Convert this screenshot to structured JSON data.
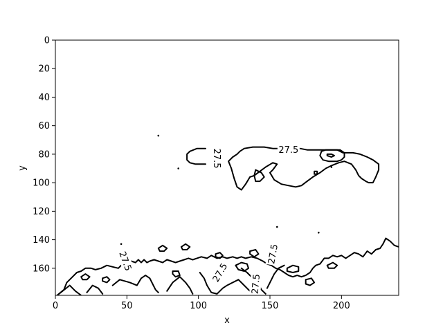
{
  "chart_data": {
    "type": "contour",
    "title": "",
    "xlabel": "x",
    "ylabel": "y",
    "xlim": [
      0,
      240
    ],
    "ylim": [
      179,
      0
    ],
    "y_inverted": true,
    "xticks": [
      "0",
      "50",
      "100",
      "150",
      "200"
    ],
    "yticks": [
      "0",
      "20",
      "40",
      "60",
      "80",
      "100",
      "120",
      "140",
      "160"
    ],
    "grid": false,
    "legend": "none",
    "line_color": "#000000",
    "contour_level": 27.5,
    "contour_labels": [
      {
        "text": "27.5",
        "x": 163,
        "y": 77,
        "rotation": 0
      },
      {
        "text": "27.5",
        "x": 113,
        "y": 83,
        "rotation": 90
      },
      {
        "text": "27.5",
        "x": 49,
        "y": 155,
        "rotation": 70
      },
      {
        "text": "27.5",
        "x": 115,
        "y": 163,
        "rotation": -60
      },
      {
        "text": "27.5",
        "x": 140,
        "y": 171,
        "rotation": -85
      },
      {
        "text": "27.5",
        "x": 152,
        "y": 150,
        "rotation": -80
      }
    ],
    "contours": [
      [
        [
          105,
          76
        ],
        [
          99,
          76
        ],
        [
          94,
          78
        ],
        [
          92,
          80
        ],
        [
          92,
          84
        ],
        [
          94,
          86
        ],
        [
          98,
          87
        ],
        [
          105,
          87
        ]
      ],
      [
        [
          121,
          85
        ],
        [
          123,
          90
        ],
        [
          125,
          97
        ],
        [
          127,
          103
        ],
        [
          130,
          105
        ],
        [
          133,
          101
        ],
        [
          136,
          96
        ],
        [
          139,
          95
        ],
        [
          143,
          92
        ],
        [
          147,
          89
        ],
        [
          152,
          86
        ],
        [
          155,
          87
        ],
        [
          152,
          91
        ],
        [
          150,
          93
        ],
        [
          153,
          98
        ],
        [
          158,
          101
        ],
        [
          163,
          102
        ],
        [
          168,
          103
        ],
        [
          172,
          102
        ],
        [
          176,
          99
        ],
        [
          180,
          96
        ],
        [
          185,
          93
        ],
        [
          189,
          90
        ],
        [
          193,
          88
        ],
        [
          198,
          86
        ],
        [
          202,
          85
        ],
        [
          207,
          87
        ],
        [
          210,
          91
        ],
        [
          212,
          95
        ],
        [
          214,
          97
        ],
        [
          217,
          99
        ],
        [
          219,
          100
        ],
        [
          222,
          100
        ],
        [
          224,
          96
        ],
        [
          226,
          91
        ],
        [
          226,
          87
        ],
        [
          222,
          84
        ],
        [
          218,
          82
        ],
        [
          213,
          80
        ],
        [
          208,
          79
        ],
        [
          201,
          79
        ],
        [
          197,
          77
        ],
        [
          191,
          77
        ],
        [
          186,
          77
        ],
        [
          181,
          77
        ],
        [
          176,
          77
        ],
        [
          171,
          76
        ],
        [
          167,
          76
        ],
        [
          160,
          76
        ],
        [
          152,
          76
        ],
        [
          146,
          75
        ],
        [
          138,
          75
        ],
        [
          132,
          76
        ],
        [
          129,
          78
        ],
        [
          127,
          80
        ],
        [
          124,
          82
        ],
        [
          121,
          85
        ]
      ],
      [
        [
          140,
          91
        ],
        [
          139,
          95
        ],
        [
          140,
          99
        ],
        [
          143,
          99
        ],
        [
          146,
          96
        ],
        [
          144,
          93
        ],
        [
          140,
          91
        ]
      ],
      [
        [
          186,
          78
        ],
        [
          189,
          77
        ],
        [
          199,
          77
        ],
        [
          202,
          79
        ],
        [
          202,
          82
        ],
        [
          200,
          84
        ],
        [
          197,
          85
        ],
        [
          191,
          85
        ],
        [
          187,
          84
        ],
        [
          185,
          81
        ],
        [
          186,
          78
        ]
      ],
      [
        [
          190,
          80
        ],
        [
          193,
          80
        ],
        [
          195,
          81
        ],
        [
          193,
          82
        ],
        [
          190,
          81
        ],
        [
          190,
          80
        ]
      ],
      [
        [
          181,
          92
        ],
        [
          183,
          92
        ],
        [
          183,
          94
        ],
        [
          181,
          94
        ],
        [
          181,
          92
        ]
      ],
      [
        [
          0,
          180
        ],
        [
          6,
          175
        ],
        [
          8,
          170
        ],
        [
          12,
          166
        ],
        [
          15,
          163
        ],
        [
          18,
          162
        ],
        [
          21,
          160
        ],
        [
          25,
          160
        ],
        [
          28,
          161
        ],
        [
          32,
          160
        ],
        [
          36,
          158
        ],
        [
          40,
          159
        ],
        [
          44,
          160
        ],
        [
          47,
          157
        ],
        [
          50,
          156
        ],
        [
          53,
          155
        ],
        [
          56,
          156
        ],
        [
          58,
          154
        ],
        [
          60,
          156
        ],
        [
          62,
          154
        ],
        [
          64,
          156
        ],
        [
          66,
          155
        ],
        [
          69,
          154
        ],
        [
          72,
          155
        ],
        [
          75,
          156
        ],
        [
          78,
          154
        ],
        [
          81,
          155
        ],
        [
          84,
          156
        ],
        [
          87,
          155
        ],
        [
          90,
          154
        ],
        [
          93,
          153
        ],
        [
          96,
          154
        ],
        [
          99,
          153
        ],
        [
          102,
          152
        ],
        [
          106,
          153
        ],
        [
          109,
          151
        ],
        [
          113,
          153
        ],
        [
          117,
          152
        ],
        [
          120,
          153
        ],
        [
          124,
          152
        ],
        [
          127,
          153
        ],
        [
          130,
          152
        ],
        [
          133,
          153
        ],
        [
          137,
          152
        ],
        [
          141,
          153
        ],
        [
          145,
          155
        ],
        [
          148,
          157
        ],
        [
          151,
          158
        ],
        [
          154,
          160
        ],
        [
          157,
          161
        ],
        [
          160,
          163
        ],
        [
          163,
          165
        ],
        [
          166,
          166
        ],
        [
          169,
          165
        ],
        [
          172,
          166
        ],
        [
          175,
          165
        ],
        [
          178,
          163
        ],
        [
          180,
          160
        ],
        [
          182,
          158
        ],
        [
          185,
          157
        ],
        [
          188,
          153
        ],
        [
          191,
          153
        ],
        [
          194,
          151
        ],
        [
          197,
          152
        ],
        [
          200,
          151
        ],
        [
          203,
          153
        ],
        [
          206,
          151
        ],
        [
          209,
          149
        ],
        [
          212,
          150
        ],
        [
          215,
          152
        ],
        [
          218,
          148
        ],
        [
          221,
          150
        ],
        [
          224,
          147
        ],
        [
          227,
          146
        ],
        [
          229,
          143
        ],
        [
          231,
          139
        ],
        [
          234,
          141
        ],
        [
          237,
          144
        ],
        [
          240,
          145
        ]
      ],
      [
        [
          0,
          180
        ],
        [
          10,
          172
        ],
        [
          14,
          176
        ],
        [
          18,
          179
        ]
      ],
      [
        [
          22,
          177
        ],
        [
          26,
          172
        ],
        [
          30,
          174
        ],
        [
          33,
          178
        ]
      ],
      [
        [
          40,
          172
        ],
        [
          45,
          168
        ],
        [
          52,
          170
        ],
        [
          57,
          172
        ],
        [
          60,
          167
        ],
        [
          63,
          165
        ],
        [
          66,
          167
        ],
        [
          68,
          171
        ],
        [
          70,
          175
        ],
        [
          72,
          177
        ]
      ],
      [
        [
          78,
          176
        ],
        [
          82,
          170
        ],
        [
          87,
          166
        ],
        [
          91,
          170
        ],
        [
          94,
          174
        ],
        [
          96,
          178
        ]
      ],
      [
        [
          101,
          163
        ],
        [
          104,
          167
        ],
        [
          106,
          172
        ],
        [
          109,
          177
        ],
        [
          113,
          178
        ],
        [
          117,
          174
        ],
        [
          120,
          172
        ],
        [
          124,
          170
        ],
        [
          128,
          168
        ],
        [
          131,
          171
        ],
        [
          135,
          175
        ],
        [
          138,
          178
        ]
      ],
      [
        [
          130,
          160
        ],
        [
          134,
          163
        ],
        [
          138,
          167
        ],
        [
          142,
          171
        ],
        [
          144,
          175
        ],
        [
          147,
          178
        ]
      ],
      [
        [
          148,
          174
        ],
        [
          151,
          168
        ],
        [
          153,
          164
        ],
        [
          156,
          160
        ],
        [
          160,
          158
        ]
      ],
      [
        [
          126,
          158
        ],
        [
          130,
          156
        ],
        [
          134,
          157
        ],
        [
          135,
          160
        ],
        [
          132,
          162
        ],
        [
          128,
          161
        ],
        [
          126,
          158
        ]
      ],
      [
        [
          136,
          148
        ],
        [
          140,
          147
        ],
        [
          142,
          150
        ],
        [
          139,
          152
        ],
        [
          136,
          150
        ],
        [
          136,
          148
        ]
      ],
      [
        [
          162,
          160
        ],
        [
          166,
          158
        ],
        [
          170,
          159
        ],
        [
          170,
          162
        ],
        [
          166,
          163
        ],
        [
          162,
          162
        ],
        [
          162,
          160
        ]
      ],
      [
        [
          175,
          168
        ],
        [
          179,
          167
        ],
        [
          181,
          170
        ],
        [
          178,
          172
        ],
        [
          175,
          171
        ],
        [
          175,
          168
        ]
      ],
      [
        [
          82,
          162
        ],
        [
          86,
          162
        ],
        [
          87,
          165
        ],
        [
          84,
          166
        ],
        [
          82,
          164
        ],
        [
          82,
          162
        ]
      ],
      [
        [
          18,
          166
        ],
        [
          21,
          164
        ],
        [
          24,
          166
        ],
        [
          22,
          168
        ],
        [
          19,
          168
        ],
        [
          18,
          166
        ]
      ],
      [
        [
          33,
          167
        ],
        [
          36,
          166
        ],
        [
          38,
          168
        ],
        [
          36,
          170
        ],
        [
          33,
          169
        ],
        [
          33,
          167
        ]
      ],
      [
        [
          88,
          145
        ],
        [
          91,
          143
        ],
        [
          94,
          145
        ],
        [
          92,
          147
        ],
        [
          89,
          147
        ],
        [
          88,
          145
        ]
      ],
      [
        [
          72,
          146
        ],
        [
          75,
          144
        ],
        [
          78,
          146
        ],
        [
          76,
          148
        ],
        [
          73,
          148
        ],
        [
          72,
          146
        ]
      ],
      [
        [
          112,
          150
        ],
        [
          115,
          149
        ],
        [
          117,
          151
        ],
        [
          115,
          153
        ],
        [
          112,
          152
        ],
        [
          112,
          150
        ]
      ],
      [
        [
          190,
          158
        ],
        [
          194,
          156
        ],
        [
          197,
          158
        ],
        [
          195,
          160
        ],
        [
          191,
          160
        ],
        [
          190,
          158
        ]
      ]
    ],
    "dots": [
      [
        72,
        67
      ],
      [
        86,
        90
      ],
      [
        155,
        131
      ],
      [
        184,
        135
      ],
      [
        193,
        89
      ],
      [
        46,
        143
      ]
    ]
  }
}
